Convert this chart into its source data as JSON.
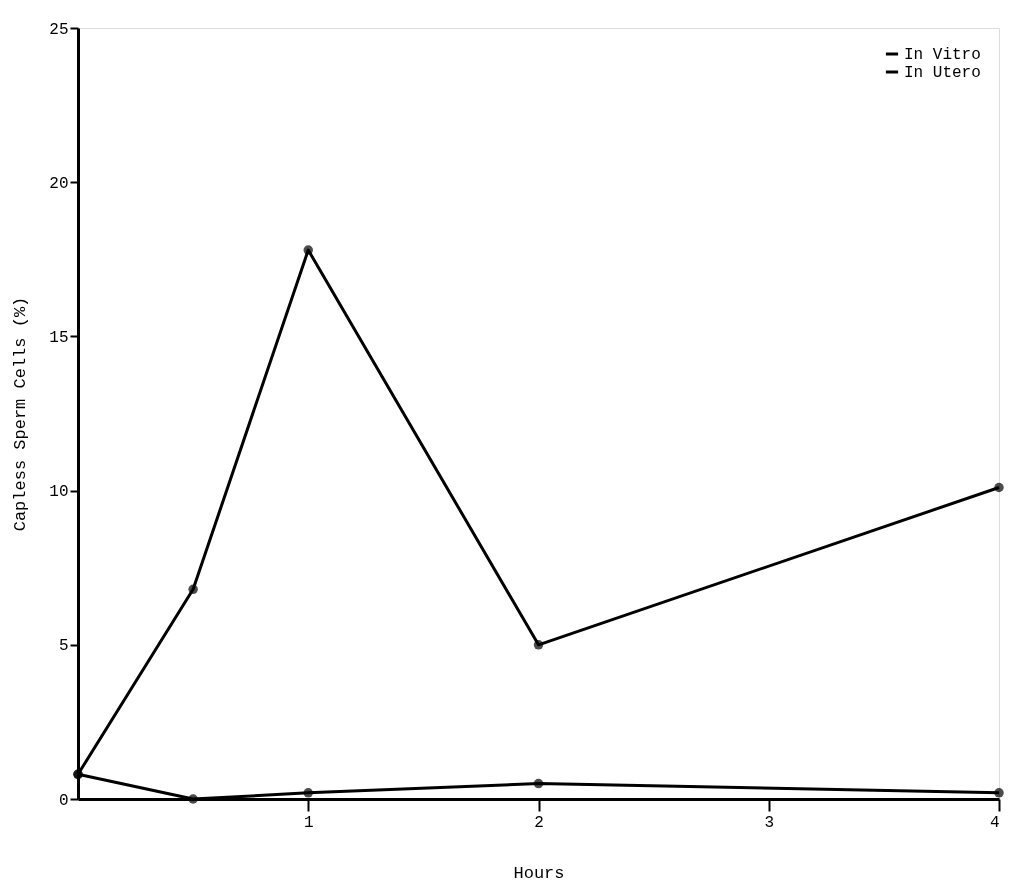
{
  "chart_data": {
    "type": "line",
    "xlabel": "Hours",
    "ylabel": "Capless Sperm Cells (%)",
    "x": [
      0,
      0.5,
      1,
      2,
      4
    ],
    "series": [
      {
        "name": "In Vitro",
        "color": "#000000",
        "values": [
          0.8,
          0,
          0.2,
          0.5,
          0.2
        ]
      },
      {
        "name": "In Utero",
        "color": "#000000",
        "values": [
          0.8,
          6.8,
          17.8,
          5.0,
          10.1
        ]
      }
    ],
    "xlim": [
      0,
      4
    ],
    "xticks": [
      1,
      2,
      3,
      4
    ],
    "ylim": [
      0,
      25
    ],
    "yticks": [
      0,
      5,
      10,
      15,
      20,
      25
    ],
    "grid": false,
    "legend": "top right",
    "marker": "circle",
    "line_style": "solid"
  }
}
